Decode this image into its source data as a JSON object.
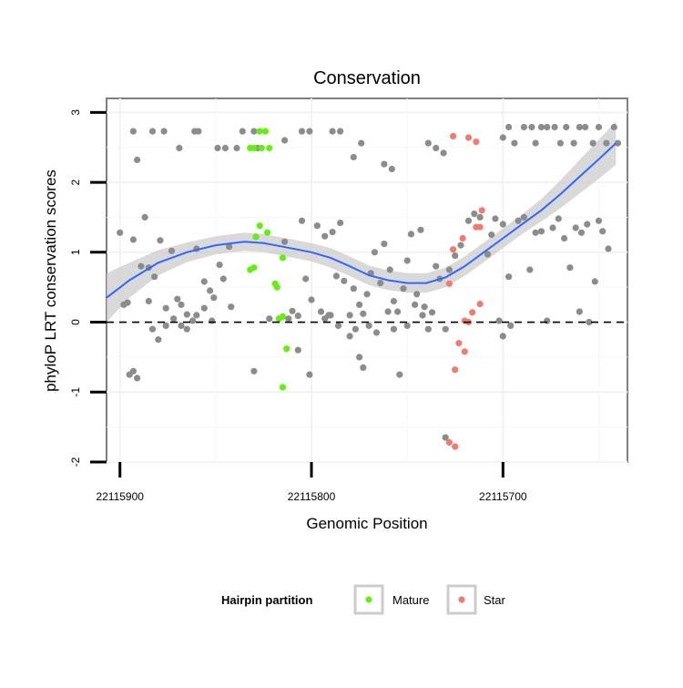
{
  "chart_data": {
    "type": "scatter",
    "title": "Conservation",
    "xlabel": "Genomic Position",
    "ylabel": "phyloP LRT conservation scores",
    "x_reversed": true,
    "xlim": [
      22115907,
      22115635
    ],
    "ylim": [
      -2,
      3.2
    ],
    "x_ticks": [
      22115900,
      22115800,
      22115700
    ],
    "x_tick_labels": [
      "22115900",
      "22115800",
      "22115700"
    ],
    "y_ticks": [
      -2,
      -1,
      0,
      1,
      2,
      3
    ],
    "y_tick_labels": [
      "-2",
      "-1",
      "0",
      "1",
      "2",
      "3"
    ],
    "grid": true,
    "reference_line": {
      "y": 0,
      "style": "dashed"
    },
    "legend": {
      "title": "Hairpin partition",
      "position": "bottom",
      "entries": [
        {
          "label": "Mature",
          "color": "#66ee11"
        },
        {
          "label": "Star",
          "color": "#f07b70"
        }
      ]
    },
    "colors": {
      "other": "#8c8c8c",
      "mature": "#66ee11",
      "star": "#f07b70",
      "smooth": "#3366ff",
      "ribbon": "#cccccc"
    },
    "series": [
      {
        "name": "",
        "group": "other",
        "points": [
          [
            22115893,
            2.73
          ],
          [
            22115891,
            2.32
          ],
          [
            22115883,
            2.73
          ],
          [
            22115877,
            2.73
          ],
          [
            22115869,
            2.49
          ],
          [
            22115861,
            2.73
          ],
          [
            22115859,
            2.73
          ],
          [
            22115849,
            2.49
          ],
          [
            22115845,
            2.49
          ],
          [
            22115839,
            2.49
          ],
          [
            22115836,
            2.73
          ],
          [
            22115830,
            2.73
          ],
          [
            22115828,
            2.49
          ],
          [
            22115814,
            2.6
          ],
          [
            22115805,
            2.73
          ],
          [
            22115801,
            2.73
          ],
          [
            22115789,
            2.73
          ],
          [
            22115785,
            2.73
          ],
          [
            22115778,
            2.36
          ],
          [
            22115774,
            2.56
          ],
          [
            22115762,
            2.26
          ],
          [
            22115758,
            2.19
          ],
          [
            22115739,
            2.56
          ],
          [
            22115735,
            2.49
          ],
          [
            22115731,
            2.42
          ],
          [
            22115700,
            2.64
          ],
          [
            22115697,
            2.79
          ],
          [
            22115694,
            2.56
          ],
          [
            22115689,
            2.79
          ],
          [
            22115685,
            2.79
          ],
          [
            22115683,
            2.56
          ],
          [
            22115680,
            2.79
          ],
          [
            22115677,
            2.79
          ],
          [
            22115673,
            2.79
          ],
          [
            22115670,
            2.56
          ],
          [
            22115667,
            2.79
          ],
          [
            22115663,
            2.56
          ],
          [
            22115660,
            2.79
          ],
          [
            22115657,
            2.79
          ],
          [
            22115653,
            2.56
          ],
          [
            22115650,
            2.79
          ],
          [
            22115646,
            2.56
          ],
          [
            22115642,
            2.79
          ],
          [
            22115640,
            2.56
          ],
          [
            22115900,
            1.28
          ],
          [
            22115898,
            0.25
          ],
          [
            22115896,
            0.28
          ],
          [
            22115893,
            1.18
          ],
          [
            22115889,
            0.8
          ],
          [
            22115887,
            1.5
          ],
          [
            22115885,
            0.78
          ],
          [
            22115882,
            0.65
          ],
          [
            22115879,
            1.17
          ],
          [
            22115876,
            0.2
          ],
          [
            22115873,
            1.02
          ],
          [
            22115870,
            0.33
          ],
          [
            22115868,
            0.25
          ],
          [
            22115865,
            0.11
          ],
          [
            22115862,
            0.02
          ],
          [
            22115860,
            1.05
          ],
          [
            22115856,
            0.58
          ],
          [
            22115853,
            0.45
          ],
          [
            22115851,
            0.35
          ],
          [
            22115848,
            0.82
          ],
          [
            22115846,
            0.62
          ],
          [
            22115843,
            1.08
          ],
          [
            22115842,
            0.22
          ],
          [
            22115814,
            1.15
          ],
          [
            22115810,
            0.16
          ],
          [
            22115807,
            0.09
          ],
          [
            22115805,
            1.45
          ],
          [
            22115803,
            0.62
          ],
          [
            22115800,
            0.32
          ],
          [
            22115797,
            1.38
          ],
          [
            22115795,
            0.15
          ],
          [
            22115793,
            1.23
          ],
          [
            22115791,
            0.1
          ],
          [
            22115789,
            1.29
          ],
          [
            22115787,
            0.66
          ],
          [
            22115785,
            1.42
          ],
          [
            22115783,
            0.59
          ],
          [
            22115780,
            0.1
          ],
          [
            22115778,
            0.48
          ],
          [
            22115775,
            0.25
          ],
          [
            22115773,
            0.12
          ],
          [
            22115771,
            0.4
          ],
          [
            22115769,
            0.7
          ],
          [
            22115767,
            1.0
          ],
          [
            22115764,
            0.56
          ],
          [
            22115762,
            1.12
          ],
          [
            22115759,
            0.75
          ],
          [
            22115757,
            0.3
          ],
          [
            22115755,
            0.15
          ],
          [
            22115752,
            0.48
          ],
          [
            22115750,
            0.88
          ],
          [
            22115748,
            1.26
          ],
          [
            22115745,
            0.4
          ],
          [
            22115743,
            1.32
          ],
          [
            22115741,
            0.22
          ],
          [
            22115739,
            -0.1
          ],
          [
            22115737,
            0.14
          ],
          [
            22115735,
            0.8
          ],
          [
            22115733,
            0.62
          ],
          [
            22115730,
            -0.1
          ],
          [
            22115728,
            0.75
          ],
          [
            22115725,
            0.95
          ],
          [
            22115722,
            1.1
          ],
          [
            22115718,
            1.45
          ],
          [
            22115715,
            1.55
          ],
          [
            22115712,
            1.5
          ],
          [
            22115708,
            0.97
          ],
          [
            22115706,
            1.25
          ],
          [
            22115704,
            1.48
          ],
          [
            22115702,
            0.02
          ],
          [
            22115700,
            1.4
          ],
          [
            22115697,
            0.65
          ],
          [
            22115692,
            1.45
          ],
          [
            22115689,
            1.5
          ],
          [
            22115686,
            0.75
          ],
          [
            22115683,
            1.28
          ],
          [
            22115680,
            1.3
          ],
          [
            22115677,
            0.02
          ],
          [
            22115674,
            1.35
          ],
          [
            22115671,
            1.48
          ],
          [
            22115668,
            1.2
          ],
          [
            22115665,
            0.78
          ],
          [
            22115662,
            1.35
          ],
          [
            22115659,
            1.28
          ],
          [
            22115656,
            1.4
          ],
          [
            22115652,
            0.58
          ],
          [
            22115650,
            1.45
          ],
          [
            22115648,
            1.3
          ],
          [
            22115645,
            1.05
          ],
          [
            22115895,
            -0.75
          ],
          [
            22115893,
            -0.7
          ],
          [
            22115891,
            -0.8
          ],
          [
            22115885,
            0.3
          ],
          [
            22115883,
            -0.1
          ],
          [
            22115880,
            -0.25
          ],
          [
            22115876,
            -0.05
          ],
          [
            22115872,
            0.05
          ],
          [
            22115868,
            -0.05
          ],
          [
            22115865,
            -0.1
          ],
          [
            22115860,
            0.1
          ],
          [
            22115856,
            0.2
          ],
          [
            22115852,
            0.02
          ],
          [
            22115830,
            -0.7
          ],
          [
            22115822,
            0.05
          ],
          [
            22115812,
            0.05
          ],
          [
            22115807,
            -0.4
          ],
          [
            22115801,
            -0.75
          ],
          [
            22115793,
            0.05
          ],
          [
            22115790,
            0.1
          ],
          [
            22115786,
            -0.05
          ],
          [
            22115780,
            -0.2
          ],
          [
            22115777,
            -0.1
          ],
          [
            22115775,
            -0.5
          ],
          [
            22115773,
            -0.65
          ],
          [
            22115770,
            -0.05
          ],
          [
            22115766,
            -0.15
          ],
          [
            22115760,
            0.15
          ],
          [
            22115757,
            -0.1
          ],
          [
            22115754,
            -0.75
          ],
          [
            22115750,
            -0.05
          ],
          [
            22115746,
            0.25
          ],
          [
            22115742,
            0.1
          ],
          [
            22115700,
            -0.2
          ],
          [
            22115696,
            -0.05
          ],
          [
            22115660,
            0.15
          ],
          [
            22115655,
            0.0
          ],
          [
            22115730,
            -1.65
          ]
        ]
      },
      {
        "name": "Mature",
        "group": "mature",
        "points": [
          [
            22115832,
            2.49
          ],
          [
            22115830,
            2.49
          ],
          [
            22115827,
            2.73
          ],
          [
            22115826,
            2.49
          ],
          [
            22115824,
            2.73
          ],
          [
            22115822,
            2.49
          ],
          [
            22115832,
            0.75
          ],
          [
            22115830,
            0.78
          ],
          [
            22115829,
            1.22
          ],
          [
            22115827,
            1.38
          ],
          [
            22115823,
            1.28
          ],
          [
            22115819,
            0.55
          ],
          [
            22115818,
            0.5
          ],
          [
            22115817,
            0.05
          ],
          [
            22115815,
            0.92
          ],
          [
            22115815,
            0.08
          ],
          [
            22115813,
            -0.38
          ],
          [
            22115815,
            -0.93
          ]
        ]
      },
      {
        "name": "Star",
        "group": "star",
        "points": [
          [
            22115726,
            2.66
          ],
          [
            22115718,
            2.64
          ],
          [
            22115714,
            2.58
          ],
          [
            22115711,
            1.6
          ],
          [
            22115712,
            1.36
          ],
          [
            22115714,
            1.36
          ],
          [
            22115726,
            1.04
          ],
          [
            22115721,
            1.2
          ],
          [
            22115718,
            0.0
          ],
          [
            22115712,
            0.26
          ],
          [
            22115716,
            0.14
          ],
          [
            22115728,
            0.55
          ],
          [
            22115720,
            0.02
          ],
          [
            22115723,
            -0.3
          ],
          [
            22115720,
            -0.42
          ],
          [
            22115725,
            -0.68
          ],
          [
            22115728,
            -1.72
          ],
          [
            22115725,
            -1.78
          ]
        ]
      }
    ],
    "smooth": {
      "x": [
        22115907,
        22115895,
        22115880,
        22115865,
        22115850,
        22115835,
        22115825,
        22115815,
        22115800,
        22115790,
        22115780,
        22115770,
        22115760,
        22115750,
        22115740,
        22115730,
        22115720,
        22115710,
        22115700,
        22115690,
        22115680,
        22115670,
        22115660,
        22115650,
        22115641
      ],
      "y": [
        0.35,
        0.6,
        0.85,
        1.0,
        1.1,
        1.15,
        1.13,
        1.08,
        1.0,
        0.92,
        0.8,
        0.67,
        0.6,
        0.56,
        0.56,
        0.64,
        0.8,
        1.0,
        1.2,
        1.4,
        1.6,
        1.83,
        2.08,
        2.33,
        2.56
      ],
      "lower": [
        0.0,
        0.35,
        0.67,
        0.86,
        0.97,
        1.02,
        1.0,
        0.95,
        0.87,
        0.78,
        0.66,
        0.53,
        0.46,
        0.42,
        0.42,
        0.5,
        0.66,
        0.86,
        1.06,
        1.26,
        1.44,
        1.63,
        1.84,
        2.05,
        2.25
      ],
      "upper": [
        0.7,
        0.85,
        1.03,
        1.14,
        1.23,
        1.28,
        1.26,
        1.21,
        1.13,
        1.06,
        0.94,
        0.81,
        0.74,
        0.7,
        0.7,
        0.78,
        0.94,
        1.14,
        1.34,
        1.54,
        1.76,
        2.03,
        2.32,
        2.61,
        2.87
      ]
    }
  }
}
